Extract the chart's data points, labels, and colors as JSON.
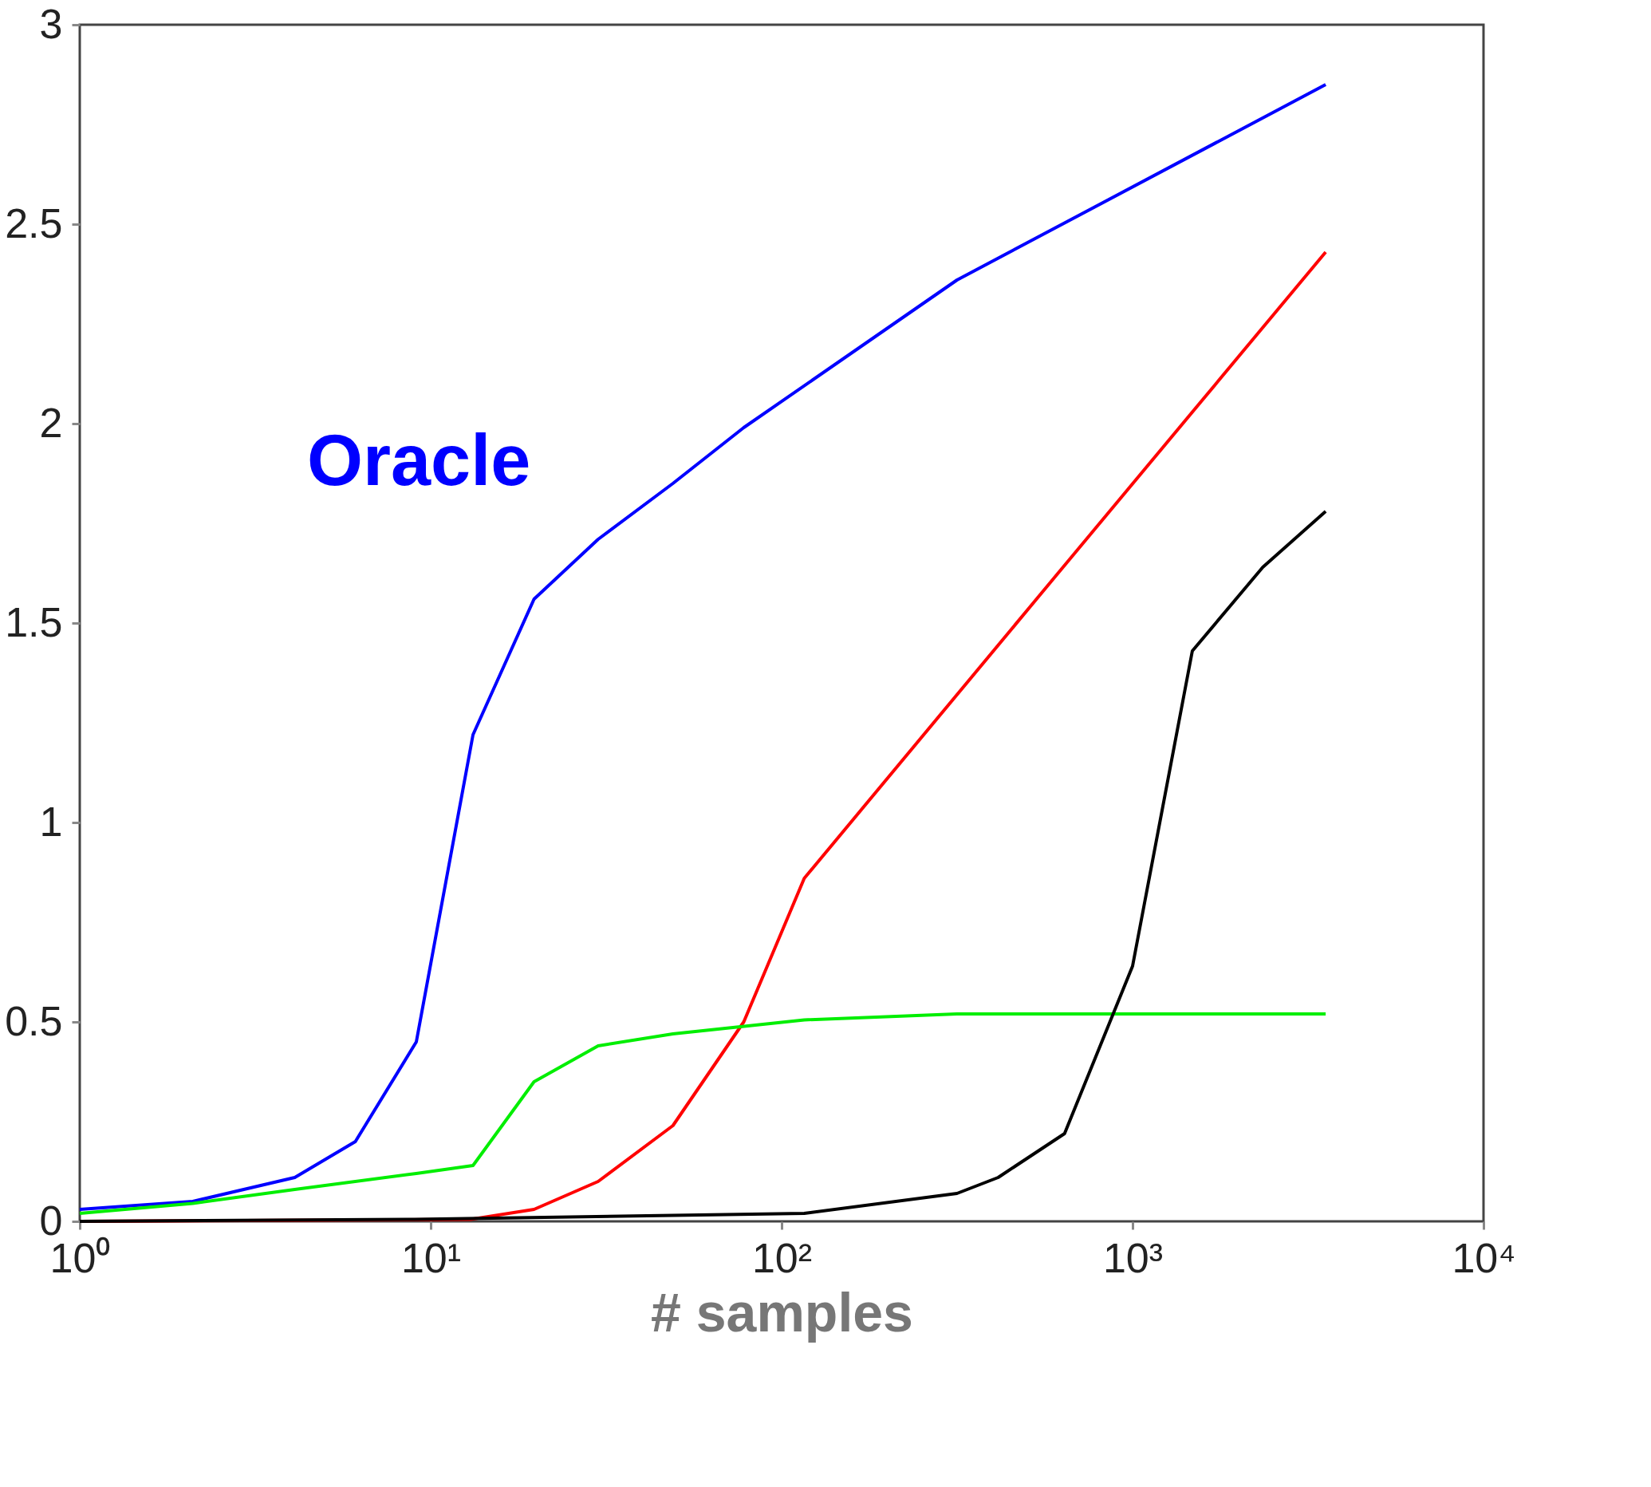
{
  "chart_data": {
    "type": "line",
    "xlabel": "# samples",
    "log": "x",
    "xlim": [
      1,
      10000
    ],
    "xticks": [
      {
        "value": 1,
        "label": "10⁰"
      },
      {
        "value": 10,
        "label": "10¹"
      },
      {
        "value": 100,
        "label": "10²"
      },
      {
        "value": 1000,
        "label": "10³"
      },
      {
        "value": 10000,
        "label": "10⁴"
      }
    ],
    "ylim": [
      0,
      3
    ],
    "yticks": [
      0,
      0.5,
      1,
      1.5,
      2,
      2.5,
      3
    ],
    "grid": false,
    "line_style": "solid",
    "marker": "none",
    "series": [
      {
        "name": "Oracle",
        "color": "#0000ff",
        "x": [
          1,
          2.1,
          4.1,
          6.1,
          9.1,
          13.2,
          19.7,
          30,
          49,
          78,
          316,
          3550
        ],
        "values": [
          0.03,
          0.05,
          0.11,
          0.2,
          0.45,
          1.22,
          1.56,
          1.71,
          1.85,
          1.99,
          2.36,
          2.85
        ]
      },
      {
        "color": "#ff0000",
        "x": [
          1,
          13,
          19.7,
          30,
          49,
          78,
          116,
          620,
          3550
        ],
        "values": [
          0,
          0.005,
          0.03,
          0.1,
          0.24,
          0.5,
          0.86,
          1.63,
          2.43
        ]
      },
      {
        "color": "#00ee00",
        "x": [
          1,
          2.1,
          4.1,
          9.1,
          13.2,
          19.7,
          30,
          49,
          116,
          316,
          3550
        ],
        "values": [
          0.02,
          0.045,
          0.08,
          0.12,
          0.14,
          0.35,
          0.44,
          0.47,
          0.505,
          0.52,
          0.52
        ]
      },
      {
        "color": "#000000",
        "x": [
          1,
          9,
          116,
          316,
          414,
          640,
          1000,
          1480,
          2350,
          3550
        ],
        "values": [
          0,
          0.005,
          0.02,
          0.07,
          0.11,
          0.22,
          0.64,
          1.43,
          1.64,
          1.78
        ]
      }
    ]
  }
}
